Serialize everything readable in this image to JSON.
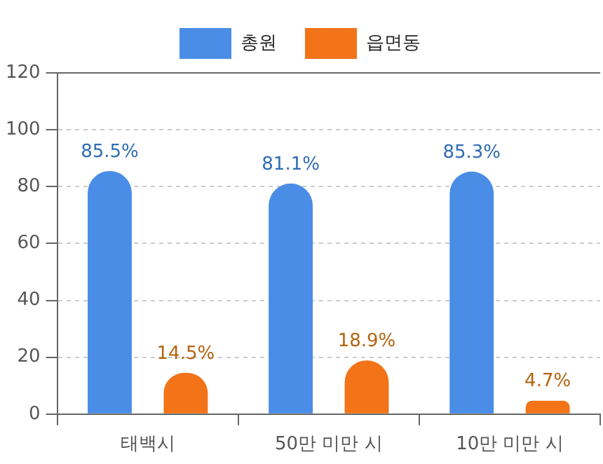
{
  "chart_data": {
    "type": "bar",
    "categories": [
      "태백시",
      "50만 미만 시",
      "10만 미만 시"
    ],
    "series": [
      {
        "name": "총원",
        "color": "#4a8de6",
        "values": [
          85.5,
          81.1,
          85.3
        ],
        "value_labels": [
          "85.5%",
          "81.1%",
          "85.3%"
        ]
      },
      {
        "name": "읍면동",
        "color": "#f27318",
        "values": [
          14.5,
          18.9,
          4.7
        ],
        "value_labels": [
          "14.5%",
          "18.9%",
          "4.7%"
        ]
      }
    ],
    "ylim": [
      0,
      120
    ],
    "yticks": [
      0,
      20,
      40,
      60,
      80,
      100,
      120
    ],
    "grid": "y",
    "legend": "top"
  }
}
